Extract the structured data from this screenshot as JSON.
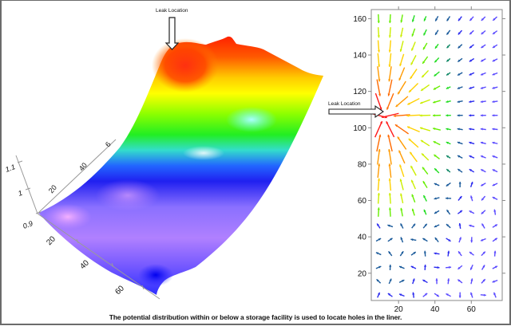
{
  "caption": "The potential distribution within or below a storage facility is used to locate holes in the liner.",
  "annotations": {
    "leak_label_3d": "Leak Location",
    "leak_label_vector": "Leak Location"
  },
  "colors": {
    "frame": "#6b6b6b",
    "peak_red": "#ff2a00",
    "orange": "#ff9a00",
    "yellow": "#ffff00",
    "green": "#22ee00",
    "cyan": "#55ffff",
    "blue": "#1a1aff",
    "violet": "#9a66ff",
    "pink": "#f0a0ff"
  },
  "chart_data": [
    {
      "type": "surface3d",
      "title": "",
      "description": "3D surface of electric potential over the facility; red peak at leak location, decreasing through yellow/green/cyan to blue/violet.",
      "z_axis": {
        "ticks": [
          "0.9",
          "1",
          "1.1"
        ]
      },
      "x_axis": {
        "ticks": [
          "20",
          "40",
          "60"
        ]
      },
      "y_axis": {
        "ticks": [
          "20",
          "40",
          "60"
        ]
      },
      "colorscale": [
        "#ff2a00",
        "#ff9a00",
        "#ffff00",
        "#22ee00",
        "#55ffff",
        "#1a1aff",
        "#9a66ff",
        "#f0a0ff"
      ],
      "peak": {
        "label": "Leak Location",
        "color": "red"
      }
    },
    {
      "type": "vector_field",
      "title": "",
      "xlabel": "",
      "ylabel": "",
      "xlim": [
        5,
        77
      ],
      "ylim": [
        5,
        165
      ],
      "x_ticks": [
        20,
        40,
        60
      ],
      "y_ticks": [
        20,
        40,
        60,
        80,
        100,
        120,
        140,
        160
      ],
      "annotation": {
        "text": "Leak Location",
        "x": 10,
        "y": 106
      },
      "grid": false,
      "source_point": [
        12,
        106
      ],
      "description": "Arrows colored by magnitude (red = strongest, blue = weakest) pointing toward leak near (12,106)."
    }
  ]
}
